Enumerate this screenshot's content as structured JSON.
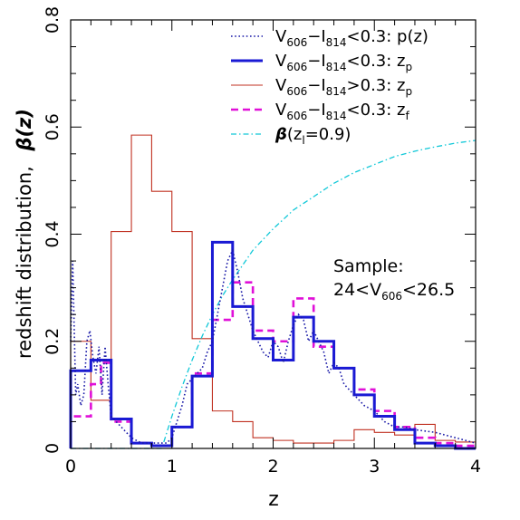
{
  "chart_data": {
    "type": "line",
    "xlabel": "z",
    "ylabel": "redshift distribution,",
    "ylabel_symbol": "β(z)",
    "xlim": [
      0,
      4
    ],
    "ylim": [
      0,
      0.8
    ],
    "xticks": [
      0,
      1,
      2,
      3,
      4
    ],
    "yticks": [
      0,
      0.2,
      0.4,
      0.6,
      0.8
    ],
    "grid": false,
    "legend_position": "top-right",
    "annotation": {
      "line1": "Sample:",
      "line2_pre": "24<V",
      "line2_sub": "606",
      "line2_post": "<26.5"
    },
    "series": [
      {
        "key": "pz",
        "legend": {
          "pre": "V",
          "sub1": "606",
          "mid": "−I",
          "sub2": "814",
          "post": "<0.3:  p(z)"
        },
        "style": "dotted",
        "color": "#1a1aa8",
        "x": [
          0.0,
          0.02,
          0.05,
          0.07,
          0.1,
          0.13,
          0.16,
          0.19,
          0.22,
          0.25,
          0.28,
          0.31,
          0.34,
          0.37,
          0.4,
          0.45,
          0.5,
          0.6,
          0.7,
          0.8,
          0.9,
          0.95,
          1.0,
          1.05,
          1.1,
          1.15,
          1.2,
          1.25,
          1.3,
          1.35,
          1.4,
          1.45,
          1.5,
          1.55,
          1.6,
          1.65,
          1.7,
          1.75,
          1.8,
          1.85,
          1.9,
          1.95,
          2.0,
          2.05,
          2.1,
          2.15,
          2.2,
          2.25,
          2.3,
          2.35,
          2.4,
          2.45,
          2.5,
          2.55,
          2.6,
          2.65,
          2.7,
          2.8,
          2.9,
          3.0,
          3.1,
          3.2,
          3.3,
          3.4,
          3.6,
          3.8,
          4.0
        ],
        "y": [
          0.2,
          0.35,
          0.1,
          0.12,
          0.08,
          0.1,
          0.2,
          0.22,
          0.17,
          0.14,
          0.19,
          0.1,
          0.19,
          0.12,
          0.06,
          0.05,
          0.04,
          0.02,
          0.01,
          0.01,
          0.01,
          0.01,
          0.02,
          0.05,
          0.08,
          0.12,
          0.13,
          0.14,
          0.15,
          0.18,
          0.2,
          0.25,
          0.3,
          0.35,
          0.37,
          0.33,
          0.28,
          0.25,
          0.22,
          0.2,
          0.18,
          0.17,
          0.2,
          0.19,
          0.16,
          0.2,
          0.23,
          0.25,
          0.24,
          0.2,
          0.22,
          0.2,
          0.18,
          0.14,
          0.16,
          0.15,
          0.12,
          0.1,
          0.08,
          0.07,
          0.05,
          0.04,
          0.04,
          0.035,
          0.03,
          0.02,
          0.01
        ]
      },
      {
        "key": "zp_blue",
        "legend": {
          "pre": "V",
          "sub1": "606",
          "mid": "−I",
          "sub2": "814",
          "post": "<0.3:  z",
          "post_sub": "p"
        },
        "style": "step-thick",
        "color": "#1a1ad4",
        "edges": [
          0.0,
          0.2,
          0.4,
          0.6,
          0.8,
          1.0,
          1.2,
          1.4,
          1.6,
          1.8,
          2.0,
          2.2,
          2.4,
          2.6,
          2.8,
          3.0,
          3.2,
          3.4,
          3.6,
          3.8,
          4.0
        ],
        "values": [
          0.145,
          0.165,
          0.055,
          0.01,
          0.005,
          0.04,
          0.135,
          0.385,
          0.265,
          0.205,
          0.165,
          0.245,
          0.2,
          0.15,
          0.1,
          0.06,
          0.035,
          0.01,
          0.005,
          0.0
        ]
      },
      {
        "key": "zp_red",
        "legend": {
          "pre": "V",
          "sub1": "606",
          "mid": "−I",
          "sub2": "814",
          "post": ">0.3:  z",
          "post_sub": "p"
        },
        "style": "step-thin",
        "color": "#c03020",
        "edges": [
          0.0,
          0.2,
          0.4,
          0.6,
          0.8,
          1.0,
          1.2,
          1.4,
          1.6,
          1.8,
          2.0,
          2.2,
          2.4,
          2.6,
          2.8,
          3.0,
          3.2,
          3.4,
          3.6,
          3.8,
          4.0
        ],
        "values": [
          0.2,
          0.09,
          0.405,
          0.585,
          0.48,
          0.405,
          0.205,
          0.07,
          0.05,
          0.02,
          0.015,
          0.01,
          0.01,
          0.015,
          0.035,
          0.03,
          0.025,
          0.045,
          0.015,
          0.012
        ]
      },
      {
        "key": "zf",
        "legend": {
          "pre": "V",
          "sub1": "606",
          "mid": "−I",
          "sub2": "814",
          "post": "<0.3:  z",
          "post_sub": "f"
        },
        "style": "dashed",
        "color": "#e010d8",
        "edges": [
          0.0,
          0.1,
          0.2,
          0.3,
          0.4,
          0.5,
          0.6,
          0.7,
          0.8,
          0.9,
          1.0,
          1.1,
          1.2,
          1.3,
          1.4,
          1.5,
          1.6,
          1.7,
          1.8,
          1.9,
          2.0,
          2.1,
          2.2,
          2.3,
          2.4,
          2.5,
          2.6,
          2.7,
          2.8,
          2.9,
          3.0,
          3.1,
          3.2,
          3.3,
          3.4,
          3.5,
          3.6,
          3.7,
          3.8,
          3.9,
          4.0
        ],
        "values": [
          0.06,
          0.06,
          0.12,
          0.16,
          0.05,
          0.05,
          0.01,
          0.01,
          0.005,
          0.005,
          0.04,
          0.04,
          0.14,
          0.14,
          0.24,
          0.24,
          0.31,
          0.31,
          0.22,
          0.22,
          0.2,
          0.2,
          0.28,
          0.28,
          0.19,
          0.19,
          0.15,
          0.15,
          0.11,
          0.11,
          0.07,
          0.07,
          0.04,
          0.04,
          0.02,
          0.02,
          0.01,
          0.01,
          0.005,
          0.005
        ]
      },
      {
        "key": "beta",
        "legend": {
          "pre_symbol": "β",
          "pre": "(z",
          "sub1": "l",
          "post": "=0.9)"
        },
        "style": "dash-dot",
        "color": "#10c8d8",
        "x": [
          0.0,
          0.5,
          0.8,
          0.9,
          1.0,
          1.1,
          1.2,
          1.3,
          1.4,
          1.5,
          1.6,
          1.8,
          2.0,
          2.2,
          2.4,
          2.6,
          2.8,
          3.0,
          3.2,
          3.4,
          3.6,
          3.8,
          4.0
        ],
        "y": [
          0.0,
          0.0,
          0.0,
          0.0,
          0.06,
          0.115,
          0.165,
          0.21,
          0.25,
          0.285,
          0.315,
          0.37,
          0.41,
          0.445,
          0.47,
          0.495,
          0.515,
          0.53,
          0.545,
          0.555,
          0.563,
          0.57,
          0.575
        ]
      }
    ]
  }
}
